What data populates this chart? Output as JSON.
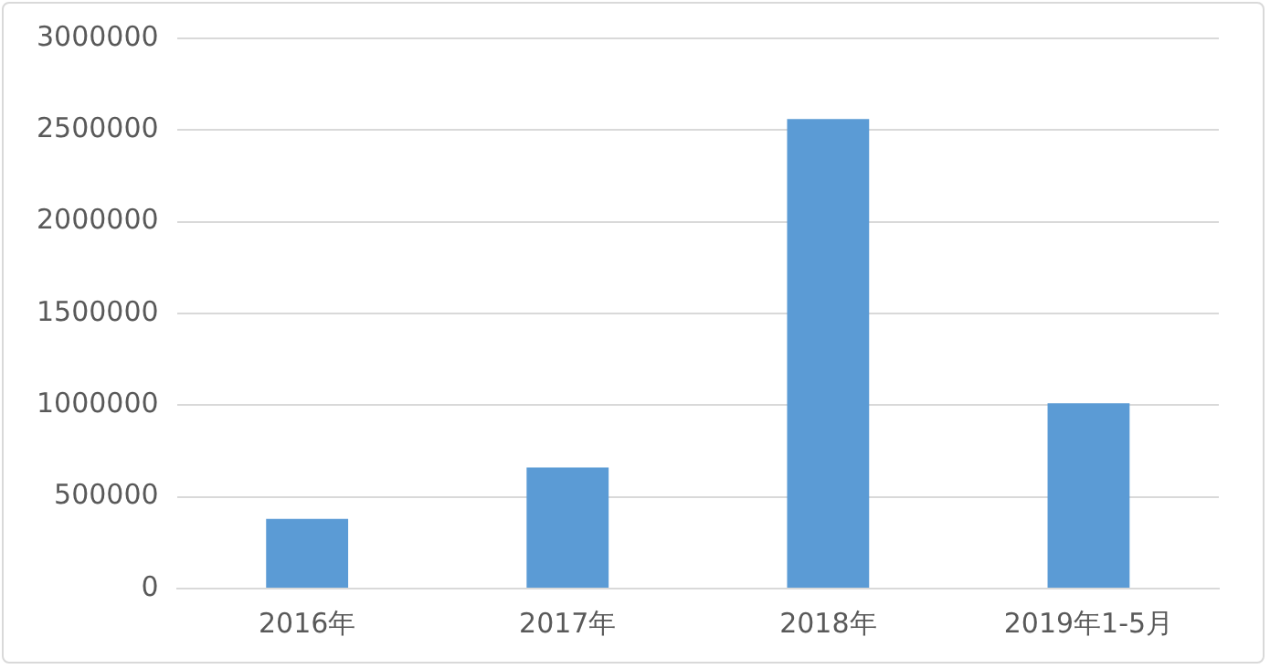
{
  "chart_data": {
    "type": "bar",
    "categories": [
      "2016年",
      "2017年",
      "2018年",
      "2019年1-5月"
    ],
    "series": [
      {
        "color": "#5b9bd5",
        "values": [
          380000,
          660000,
          2560000,
          1010000
        ]
      }
    ],
    "ylim": [
      0,
      3000000
    ],
    "yticks": [
      0,
      500000,
      1000000,
      1500000,
      2000000,
      2500000,
      3000000
    ],
    "grid": "y",
    "legend": false
  }
}
